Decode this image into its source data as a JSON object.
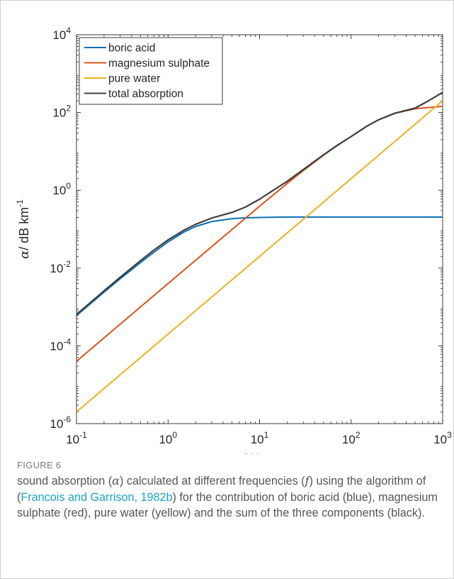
{
  "chart_data": {
    "type": "line",
    "xlabel": "f / kHz",
    "xlabel_var": "f",
    "xlabel_unit": " / kHz",
    "ylabel_var": "α",
    "ylabel_unit": "/ dB km",
    "ylabel_sup": "-1",
    "xscale": "log",
    "yscale": "log",
    "xlim": [
      0.1,
      1000
    ],
    "ylim": [
      1e-06,
      10000
    ],
    "x_ticks": [
      {
        "base": "10",
        "exp": "-1"
      },
      {
        "base": "10",
        "exp": "0"
      },
      {
        "base": "10",
        "exp": "1"
      },
      {
        "base": "10",
        "exp": "2"
      },
      {
        "base": "10",
        "exp": "3"
      }
    ],
    "y_ticks": [
      {
        "base": "10",
        "exp": "-6"
      },
      {
        "base": "10",
        "exp": "-4"
      },
      {
        "base": "10",
        "exp": "-2"
      },
      {
        "base": "10",
        "exp": "0"
      },
      {
        "base": "10",
        "exp": "2"
      },
      {
        "base": "10",
        "exp": "4"
      }
    ],
    "grid": false,
    "legend_position": "top-left",
    "series": [
      {
        "name": "boric acid",
        "color": "#0b6fb5",
        "x": [
          0.1,
          0.2,
          0.3,
          0.5,
          0.7,
          1,
          1.5,
          2,
          3,
          5,
          7,
          10,
          20,
          50,
          100,
          1000
        ],
        "y": [
          0.0006,
          0.0024,
          0.0053,
          0.0138,
          0.0254,
          0.047,
          0.085,
          0.117,
          0.157,
          0.187,
          0.196,
          0.2,
          0.205,
          0.205,
          0.205,
          0.205
        ]
      },
      {
        "name": "magnesium sulphate",
        "color": "#d95319",
        "x": [
          0.1,
          1,
          10,
          20,
          30,
          50,
          70,
          100,
          150,
          200,
          300,
          500,
          1000
        ],
        "y": [
          4e-05,
          0.004,
          0.39,
          1.5,
          3.2,
          8.0,
          14,
          24,
          45,
          65,
          95,
          125,
          145
        ]
      },
      {
        "name": "pure water",
        "color": "#edb120",
        "x": [
          0.1,
          1000
        ],
        "y": [
          2e-06,
          200
        ]
      },
      {
        "name": "total absorption",
        "color": "#3f3f3f",
        "x": [
          0.1,
          0.2,
          0.3,
          0.5,
          0.7,
          1,
          1.5,
          2,
          3,
          5,
          7,
          10,
          20,
          30,
          50,
          70,
          100,
          150,
          200,
          300,
          500,
          700,
          1000
        ],
        "y": [
          0.00064,
          0.0026,
          0.0058,
          0.0155,
          0.029,
          0.053,
          0.095,
          0.133,
          0.193,
          0.27,
          0.37,
          0.59,
          1.7,
          3.4,
          8.2,
          14.2,
          24.2,
          45.3,
          65.4,
          96,
          130,
          200,
          330
        ]
      }
    ]
  },
  "caption": {
    "label": "FIGURE 6",
    "text_1": "sound absorption (",
    "alpha": "α",
    "text_2": ") calculated at different frequencies (",
    "f": "f",
    "text_3": ") using the algorithm of (",
    "ref": "Francois and Garrison, 1982b",
    "text_4": ") for the contribution of boric acid (blue), magnesium sulphate (red), pure water (yellow) and the sum of the three components (black)."
  }
}
